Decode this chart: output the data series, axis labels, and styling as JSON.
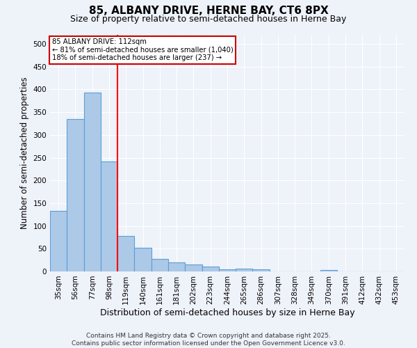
{
  "title1": "85, ALBANY DRIVE, HERNE BAY, CT6 8PX",
  "title2": "Size of property relative to semi-detached houses in Herne Bay",
  "xlabel": "Distribution of semi-detached houses by size in Herne Bay",
  "ylabel": "Number of semi-detached properties",
  "categories": [
    "35sqm",
    "56sqm",
    "77sqm",
    "98sqm",
    "119sqm",
    "140sqm",
    "161sqm",
    "181sqm",
    "202sqm",
    "223sqm",
    "244sqm",
    "265sqm",
    "286sqm",
    "307sqm",
    "328sqm",
    "349sqm",
    "370sqm",
    "391sqm",
    "412sqm",
    "432sqm",
    "453sqm"
  ],
  "values": [
    133,
    335,
    393,
    242,
    78,
    52,
    27,
    20,
    15,
    10,
    5,
    6,
    4,
    0,
    0,
    0,
    3,
    0,
    0,
    0,
    0
  ],
  "bar_color": "#adc9e8",
  "bar_edge_color": "#5a9fd4",
  "bar_width": 1.0,
  "red_line_index": 4,
  "annotation_title": "85 ALBANY DRIVE: 112sqm",
  "annotation_line1": "← 81% of semi-detached houses are smaller (1,040)",
  "annotation_line2": "18% of semi-detached houses are larger (237) →",
  "annotation_box_color": "#ffffff",
  "annotation_box_edge_color": "#cc0000",
  "ylim": [
    0,
    520
  ],
  "yticks": [
    0,
    50,
    100,
    150,
    200,
    250,
    300,
    350,
    400,
    450,
    500
  ],
  "background_color": "#eef2f9",
  "grid_color": "#ffffff",
  "footer": "Contains HM Land Registry data © Crown copyright and database right 2025.\nContains public sector information licensed under the Open Government Licence v3.0.",
  "title1_fontsize": 11,
  "title2_fontsize": 9,
  "xlabel_fontsize": 9,
  "ylabel_fontsize": 8.5,
  "footer_fontsize": 6.5,
  "tick_fontsize": 7.5
}
